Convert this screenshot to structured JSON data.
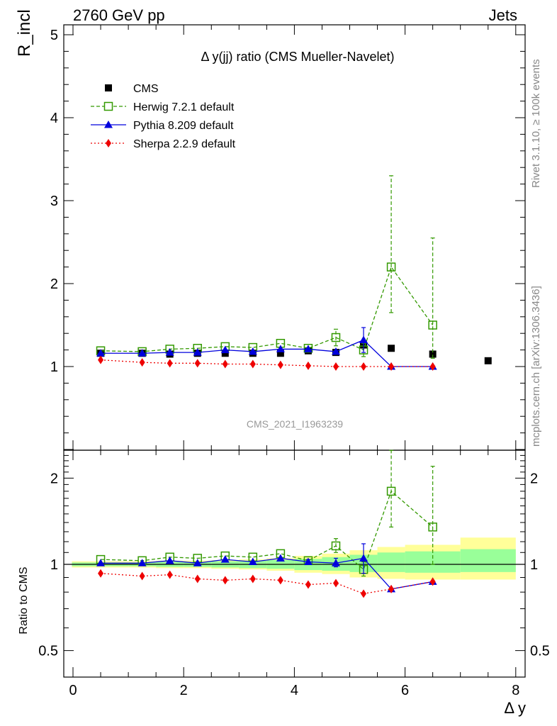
{
  "header": {
    "left": "2760 GeV pp",
    "right": "Jets"
  },
  "side_labels": {
    "rivet": "Rivet 3.1.10, ≥ 100k events",
    "mcplots": "mcplots.cern.ch [arXiv:1306.3436]"
  },
  "chart_data": {
    "type": "scatter",
    "title": "Δ y(jj) ratio (CMS Mueller-Navelet)",
    "analysis_label": "CMS_2021_I1963239",
    "xlabel": "Δ y",
    "ylabel_top": "R_incl",
    "ylabel_bottom": "Ratio to CMS",
    "xlim": [
      -0.2,
      8.0
    ],
    "ylim_top": [
      0,
      5.15
    ],
    "ylim_bottom_log": [
      0.4,
      2.4
    ],
    "x_ticks": [
      "0",
      "2",
      "4",
      "6",
      "8"
    ],
    "y_ticks_top": [
      "1",
      "2",
      "3",
      "4",
      "5"
    ],
    "y_ticks_bottom": [
      "0.5",
      "1",
      "2"
    ],
    "legend_position": "top-left",
    "legend": [
      {
        "name": "CMS",
        "color": "#000000",
        "marker": "filled-square",
        "line": "none"
      },
      {
        "name": "Herwig 7.2.1 default",
        "color": "#339900",
        "marker": "open-square",
        "line": "dashed"
      },
      {
        "name": "Pythia 8.209 default",
        "color": "#0000dd",
        "marker": "filled-triangle",
        "line": "solid"
      },
      {
        "name": "Sherpa 2.2.9 default",
        "color": "#ee0000",
        "marker": "filled-diamond",
        "line": "dotted"
      }
    ],
    "data": {
      "x": [
        0.5,
        1.25,
        1.75,
        2.25,
        2.75,
        3.25,
        3.75,
        4.25,
        4.75,
        5.25,
        5.75,
        6.5,
        7.5
      ],
      "y": [
        1.16,
        1.16,
        1.15,
        1.16,
        1.16,
        1.16,
        1.16,
        1.19,
        1.17,
        1.26,
        1.22,
        1.15,
        1.07
      ]
    },
    "band_bins": [
      {
        "x1": -0.02,
        "x2": 0.5
      },
      {
        "x1": 0.5,
        "x2": 1.0
      },
      {
        "x1": 1.0,
        "x2": 1.5
      },
      {
        "x1": 1.5,
        "x2": 2.0
      },
      {
        "x1": 2.0,
        "x2": 2.5
      },
      {
        "x1": 2.5,
        "x2": 3.0
      },
      {
        "x1": 3.0,
        "x2": 3.5
      },
      {
        "x1": 3.5,
        "x2": 4.0
      },
      {
        "x1": 4.0,
        "x2": 4.5
      },
      {
        "x1": 4.5,
        "x2": 5.0
      },
      {
        "x1": 5.0,
        "x2": 5.5
      },
      {
        "x1": 5.5,
        "x2": 6.0
      },
      {
        "x1": 6.0,
        "x2": 7.0
      },
      {
        "x1": 7.0,
        "x2": 8.0
      }
    ],
    "band_inner": [
      [
        0.985,
        1.015
      ],
      [
        0.985,
        1.015
      ],
      [
        0.985,
        1.015
      ],
      [
        0.98,
        1.02
      ],
      [
        0.98,
        1.02
      ],
      [
        0.975,
        1.025
      ],
      [
        0.97,
        1.03
      ],
      [
        0.965,
        1.035
      ],
      [
        0.955,
        1.045
      ],
      [
        0.95,
        1.06
      ],
      [
        0.94,
        1.08
      ],
      [
        0.94,
        1.1
      ],
      [
        0.935,
        1.11
      ],
      [
        0.94,
        1.13
      ]
    ],
    "band_outer": [
      [
        0.975,
        1.025
      ],
      [
        0.975,
        1.025
      ],
      [
        0.975,
        1.025
      ],
      [
        0.97,
        1.03
      ],
      [
        0.97,
        1.03
      ],
      [
        0.965,
        1.035
      ],
      [
        0.96,
        1.04
      ],
      [
        0.95,
        1.05
      ],
      [
        0.935,
        1.07
      ],
      [
        0.925,
        1.09
      ],
      [
        0.9,
        1.12
      ],
      [
        0.89,
        1.15
      ],
      [
        0.885,
        1.17
      ],
      [
        0.885,
        1.24
      ]
    ],
    "series": [
      {
        "name": "Herwig 7.2.1 default",
        "x": [
          0.5,
          1.25,
          1.75,
          2.25,
          2.75,
          3.25,
          3.75,
          4.25,
          4.75,
          5.25,
          5.75,
          6.5
        ],
        "y": [
          1.19,
          1.18,
          1.21,
          1.22,
          1.24,
          1.23,
          1.28,
          1.22,
          1.35,
          1.2,
          2.2,
          1.5
        ],
        "err": [
          0.0,
          0.0,
          0.0,
          0.0,
          0.0,
          0.0,
          0.0,
          0.0,
          0.1,
          0.08,
          0.0,
          0.0
        ],
        "err_lo": [
          0.0,
          0.0,
          0.0,
          0.0,
          0.0,
          0.0,
          0.0,
          0.0,
          0.1,
          0.08,
          0.55,
          0.4
        ],
        "err_hi": [
          0.0,
          0.0,
          0.0,
          0.0,
          0.0,
          0.0,
          0.0,
          0.0,
          0.1,
          0.08,
          1.1,
          1.05
        ],
        "ratio": [
          1.04,
          1.03,
          1.06,
          1.05,
          1.07,
          1.06,
          1.09,
          1.03,
          1.16,
          0.96,
          1.8,
          1.35
        ],
        "ratio_lo": [
          1.04,
          1.03,
          1.06,
          1.05,
          1.07,
          1.06,
          1.09,
          1.03,
          1.1,
          0.91,
          1.35,
          1.0
        ],
        "ratio_hi": [
          1.04,
          1.03,
          1.06,
          1.05,
          1.07,
          1.06,
          1.09,
          1.03,
          1.23,
          1.02,
          2.5,
          2.2
        ]
      },
      {
        "name": "Pythia 8.209 default",
        "x": [
          0.5,
          1.25,
          1.75,
          2.25,
          2.75,
          3.25,
          3.75,
          4.25,
          4.75,
          5.25,
          5.75,
          6.5
        ],
        "y": [
          1.16,
          1.16,
          1.17,
          1.17,
          1.2,
          1.18,
          1.21,
          1.21,
          1.18,
          1.32,
          1.0,
          1.0
        ],
        "y_lo": [
          1.16,
          1.16,
          1.17,
          1.17,
          1.2,
          1.18,
          1.21,
          1.21,
          1.18,
          1.17,
          1.0,
          1.0
        ],
        "y_hi": [
          1.16,
          1.16,
          1.17,
          1.17,
          1.2,
          1.18,
          1.21,
          1.21,
          1.18,
          1.47,
          1.0,
          1.0
        ],
        "ratio": [
          1.01,
          1.01,
          1.03,
          1.01,
          1.04,
          1.02,
          1.05,
          1.02,
          1.01,
          1.05,
          0.82,
          0.87
        ],
        "ratio_lo": [
          1.01,
          1.01,
          1.03,
          1.01,
          1.04,
          1.02,
          1.05,
          1.0,
          0.98,
          0.93,
          0.82,
          0.87
        ],
        "ratio_hi": [
          1.01,
          1.01,
          1.03,
          1.01,
          1.04,
          1.02,
          1.05,
          1.04,
          1.05,
          1.18,
          0.82,
          0.87
        ]
      },
      {
        "name": "Sherpa 2.2.9 default",
        "x": [
          0.5,
          1.25,
          1.75,
          2.25,
          2.75,
          3.25,
          3.75,
          4.25,
          4.75,
          5.25,
          5.75,
          6.5
        ],
        "y": [
          1.08,
          1.05,
          1.04,
          1.04,
          1.03,
          1.03,
          1.02,
          1.01,
          1.0,
          1.0,
          1.0,
          1.0
        ],
        "ratio": [
          0.93,
          0.91,
          0.92,
          0.89,
          0.88,
          0.89,
          0.88,
          0.85,
          0.86,
          0.79,
          0.82,
          0.87
        ]
      }
    ]
  }
}
